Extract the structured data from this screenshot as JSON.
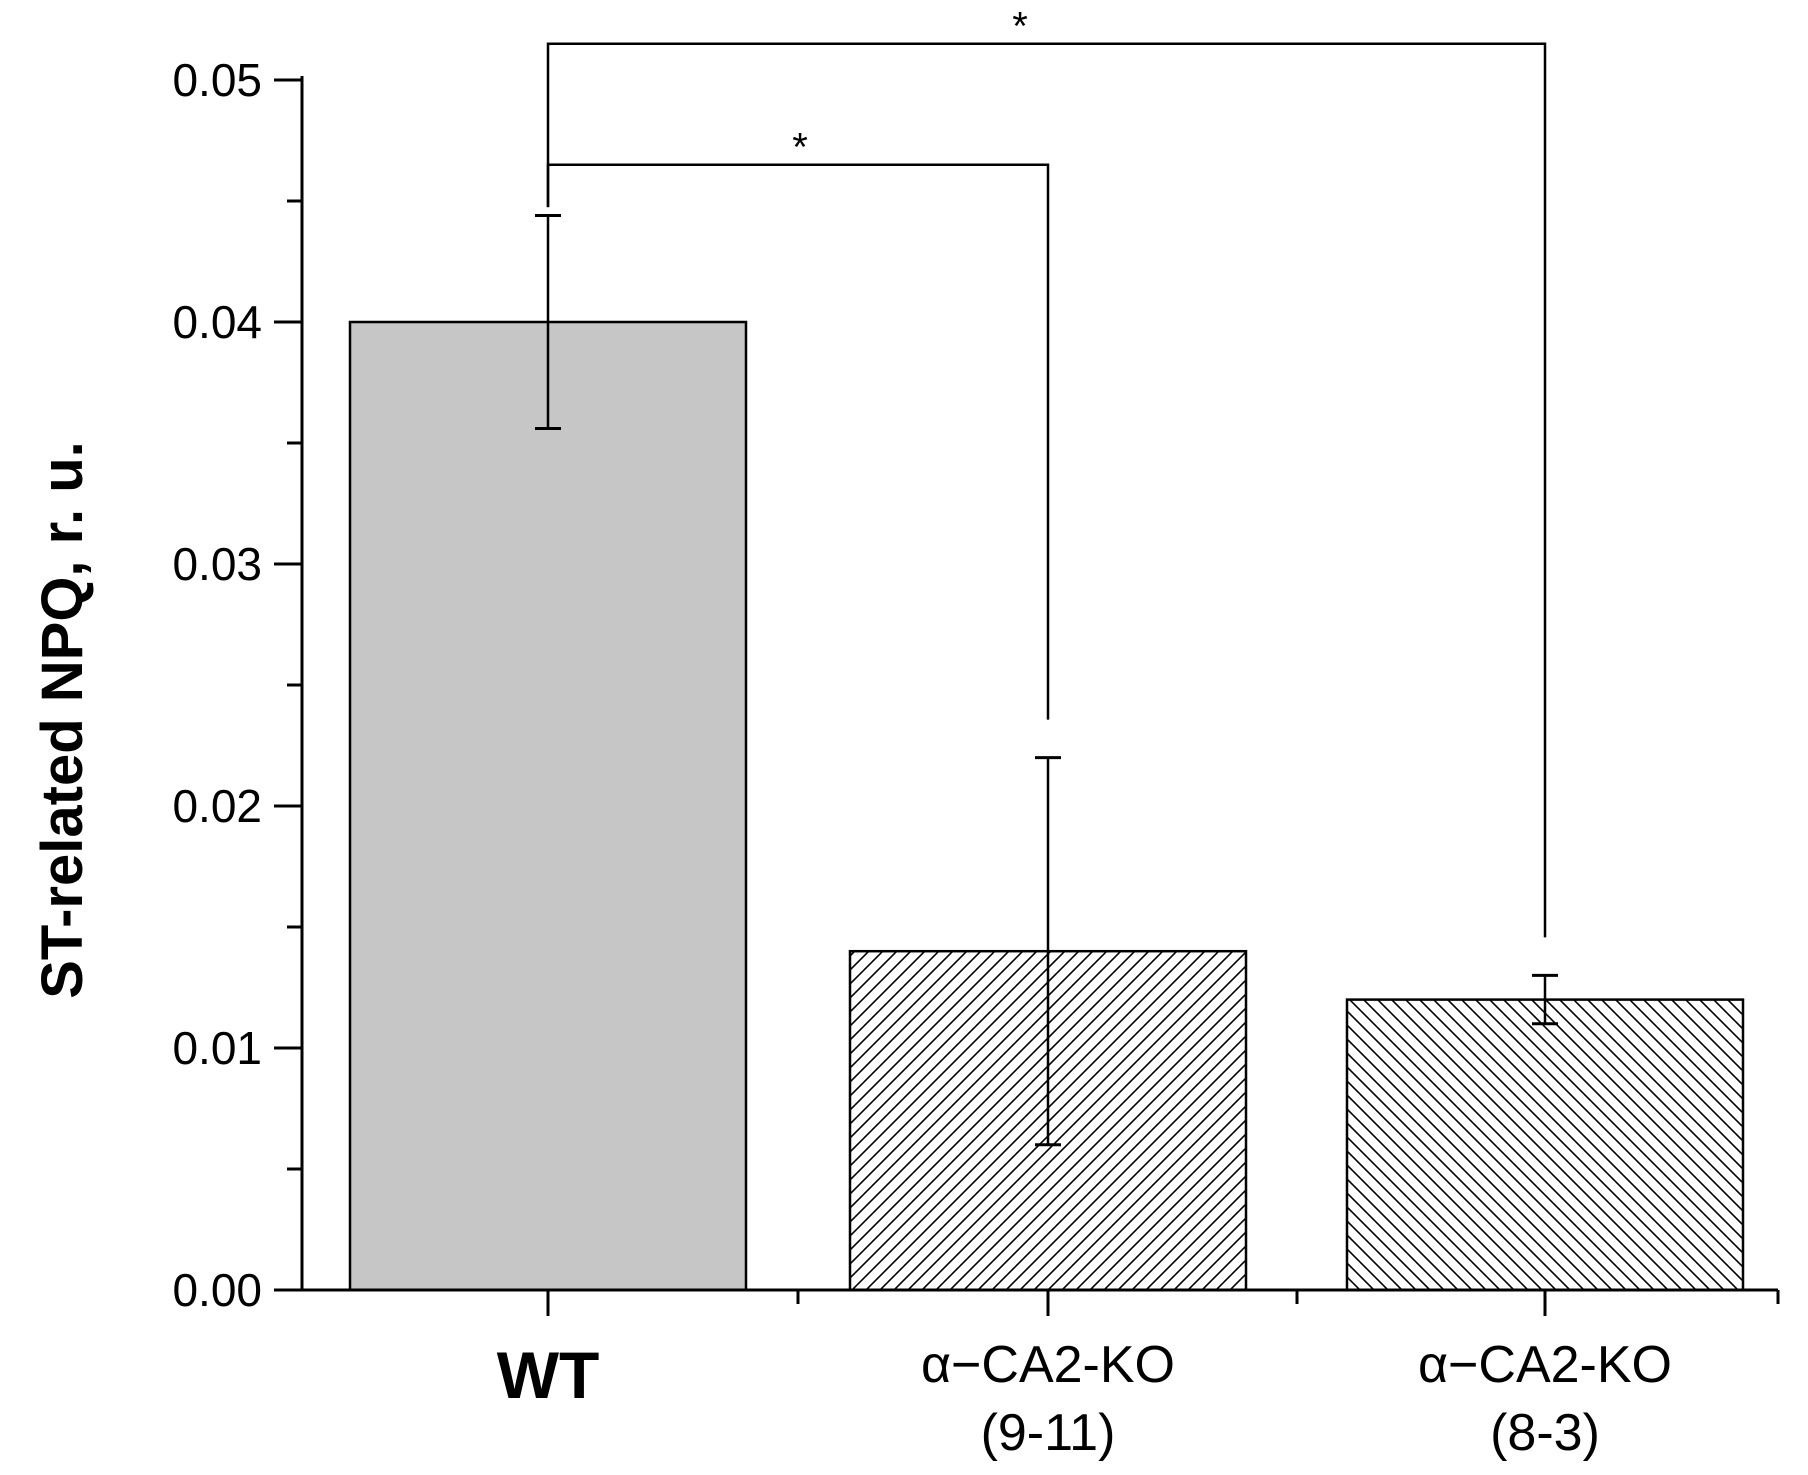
{
  "chart_data": {
    "type": "bar",
    "title": "",
    "xlabel": "",
    "ylabel": "ST-related NPQ, r. u.",
    "ylim": [
      0,
      0.05
    ],
    "yticks": [
      "0.00",
      "0.01",
      "0.02",
      "0.03",
      "0.04",
      "0.05"
    ],
    "ytick_values": [
      0,
      0.01,
      0.02,
      0.03,
      0.04,
      0.05
    ],
    "grid": false,
    "categories": [
      {
        "line1": "WT",
        "line2": "",
        "bold": true
      },
      {
        "line1": "α−CA2-KO",
        "line2": "(9-11)",
        "bold": false
      },
      {
        "line1": "α−CA2-KO",
        "line2": "(8-3)",
        "bold": false
      }
    ],
    "values": [
      0.04,
      0.014,
      0.012
    ],
    "errors": [
      0.0044,
      0.008,
      0.001
    ],
    "fills": [
      "solid-gray",
      "hatch-forward",
      "hatch-backward"
    ],
    "significance": [
      {
        "from": 0,
        "to": 1,
        "label": "*",
        "level": 0.0465
      },
      {
        "from": 0,
        "to": 2,
        "label": "*",
        "level": 0.0515
      }
    ],
    "colors": {
      "solid": "#c6c6c6",
      "hatch": "#000000",
      "axis": "#000000"
    }
  }
}
